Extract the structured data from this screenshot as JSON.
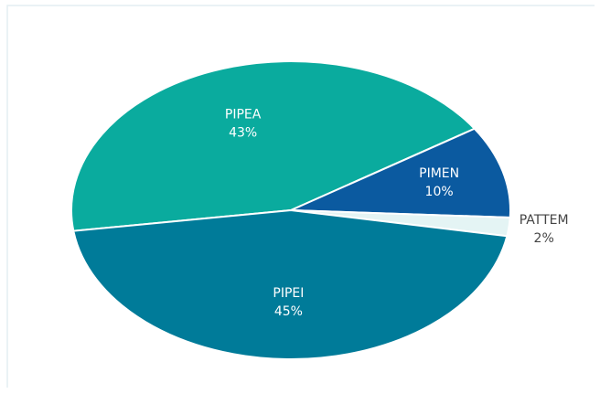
{
  "chart_data": {
    "type": "pie",
    "categories": [
      "PIPEA",
      "PIMEN",
      "PATTEM",
      "PIPEI"
    ],
    "values": [
      43,
      10,
      2,
      45
    ],
    "value_labels": [
      "43%",
      "10%",
      "2%",
      "45%"
    ],
    "colors": [
      "#0aab9e",
      "#0b5aa0",
      "#e4f4f4",
      "#007b99"
    ]
  }
}
